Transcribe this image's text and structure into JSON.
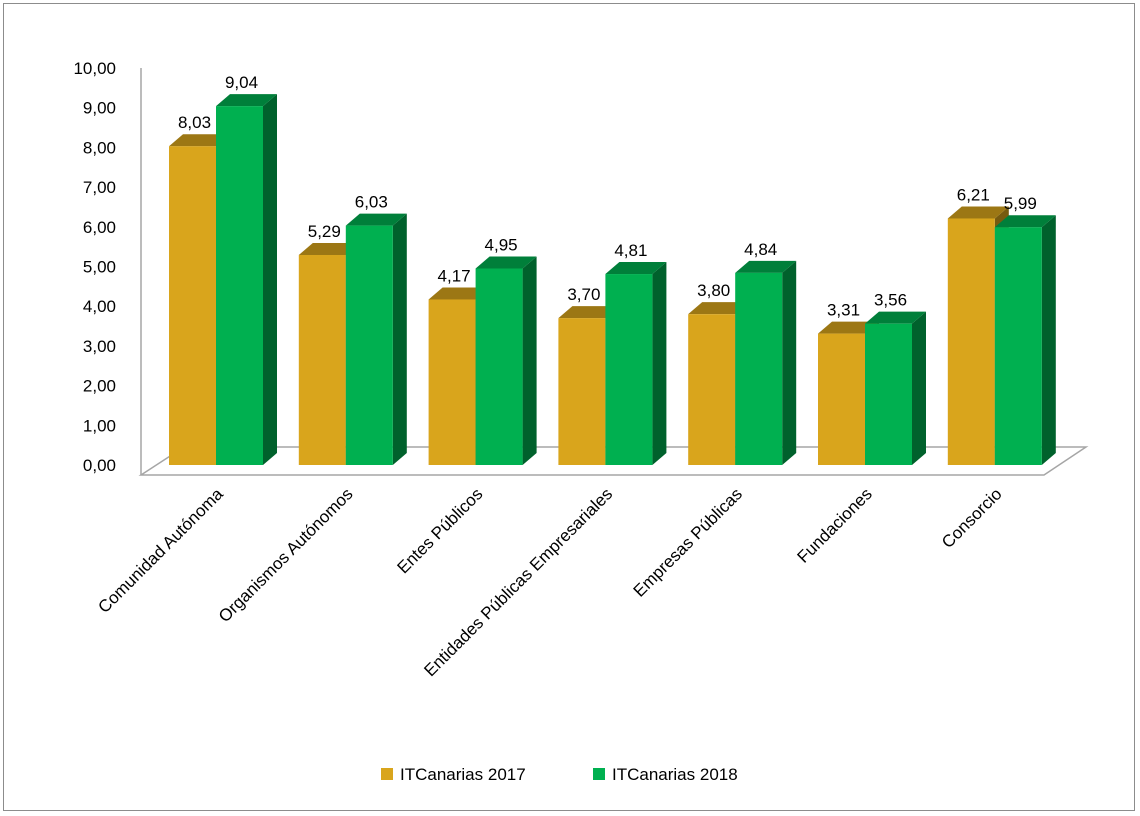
{
  "chart_data": {
    "type": "bar",
    "style": "3d-clustered-column",
    "categories": [
      "Comunidad Autónoma",
      "Organismos Autónomos",
      "Entes Públicos",
      "Entidades Públicas Empresariales",
      "Empresas Públicas",
      "Fundaciones",
      "Consorcio"
    ],
    "series": [
      {
        "name": "ITCanarias 2017",
        "values": [
          8.03,
          5.29,
          4.17,
          3.7,
          3.8,
          3.31,
          6.21
        ],
        "value_labels": [
          "8,03",
          "5,29",
          "4,17",
          "3,70",
          "3,80",
          "3,31",
          "6,21"
        ],
        "color": "#D9A51C"
      },
      {
        "name": "ITCanarias 2018",
        "values": [
          9.04,
          6.03,
          4.95,
          4.81,
          4.84,
          3.56,
          5.99
        ],
        "value_labels": [
          "9,04",
          "6,03",
          "4,95",
          "4,81",
          "4,84",
          "3,56",
          "5,99"
        ],
        "color": "#00B050"
      }
    ],
    "ylim": [
      0,
      10
    ],
    "yticks": [
      "0,00",
      "1,00",
      "2,00",
      "3,00",
      "4,00",
      "5,00",
      "6,00",
      "7,00",
      "8,00",
      "9,00",
      "10,00"
    ],
    "grid": false,
    "legend_position": "bottom",
    "title": "",
    "xlabel": "",
    "ylabel": ""
  }
}
